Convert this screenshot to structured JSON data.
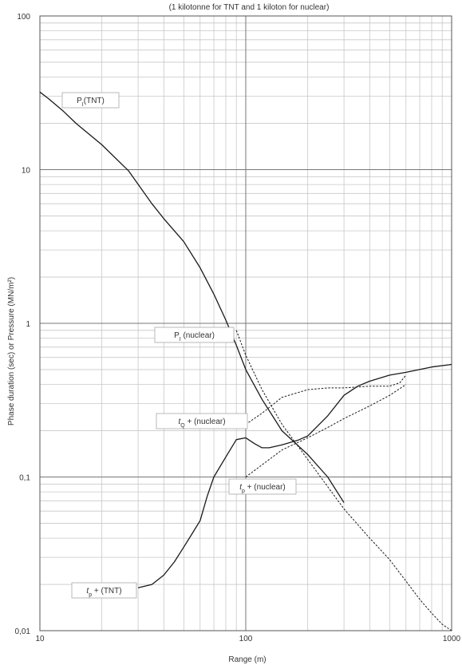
{
  "chart_data": {
    "type": "line",
    "title": "(1 kilotonne for TNT and 1 kiloton for nuclear)",
    "xlabel": "Range (m)",
    "ylabel": "Phase duration (sec) or Pressure (MN/m²)",
    "xscale": "log",
    "yscale": "log",
    "xlim": [
      10,
      1000
    ],
    "ylim": [
      0.01,
      100
    ],
    "grid": true,
    "x_ticks": [
      "10",
      "100",
      "1000"
    ],
    "y_ticks": [
      "0,01",
      "0,1",
      "1",
      "10",
      "100"
    ],
    "colors": {
      "line": "#1a1a1a",
      "grid_major": "#777777",
      "grid_minor": "#c8c8c8",
      "label_border": "#a8a8a8"
    },
    "series": [
      {
        "label_parts": [
          [
            "P",
            ""
          ],
          [
            "I",
            "sub"
          ],
          [
            "(TNT)",
            ""
          ]
        ],
        "style": "solid",
        "x": [
          10,
          11,
          13,
          15,
          20,
          27,
          35,
          40,
          50,
          60,
          70,
          80,
          90,
          100,
          120,
          150,
          200,
          250,
          300
        ],
        "y": [
          32,
          29,
          24,
          20,
          14.5,
          9.8,
          6,
          4.8,
          3.4,
          2.3,
          1.55,
          1.05,
          0.72,
          0.5,
          0.32,
          0.2,
          0.14,
          0.1,
          0.068
        ]
      },
      {
        "label_parts": [
          [
            "P",
            ""
          ],
          [
            "I",
            "sub"
          ],
          [
            " (nuclear)",
            ""
          ]
        ],
        "style": "dashed",
        "x": [
          90,
          100,
          120,
          150,
          200,
          300,
          400,
          500,
          600,
          700,
          800,
          900,
          1000
        ],
        "y": [
          0.9,
          0.62,
          0.37,
          0.22,
          0.13,
          0.062,
          0.04,
          0.029,
          0.021,
          0.016,
          0.013,
          0.011,
          0.01
        ]
      },
      {
        "label_parts": [
          [
            "t",
            "i"
          ],
          [
            "Q",
            "sub"
          ],
          [
            " + (nuclear)",
            ""
          ]
        ],
        "style": "dashed",
        "x": [
          100,
          120,
          150,
          200,
          250,
          300,
          400,
          500,
          560,
          600
        ],
        "y": [
          0.22,
          0.26,
          0.33,
          0.37,
          0.38,
          0.38,
          0.39,
          0.39,
          0.41,
          0.46
        ]
      },
      {
        "label_parts": [
          [
            "t",
            "i"
          ],
          [
            "p",
            "sub"
          ],
          [
            " + (nuclear)",
            ""
          ]
        ],
        "style": "dashed",
        "x": [
          100,
          120,
          150,
          200,
          250,
          300,
          400,
          500,
          600
        ],
        "y": [
          0.1,
          0.12,
          0.15,
          0.18,
          0.21,
          0.24,
          0.29,
          0.34,
          0.4
        ]
      },
      {
        "label_parts": [
          [
            "t",
            "i"
          ],
          [
            "p",
            "sub"
          ],
          [
            " + (TNT)",
            ""
          ]
        ],
        "style": "solid",
        "x": [
          30,
          35,
          40,
          45,
          50,
          55,
          60,
          65,
          70,
          80,
          90,
          100,
          110,
          120,
          130,
          150,
          180,
          200,
          250,
          300,
          350,
          400,
          500,
          600,
          800,
          1000
        ],
        "y": [
          0.019,
          0.02,
          0.023,
          0.028,
          0.035,
          0.043,
          0.052,
          0.075,
          0.1,
          0.135,
          0.175,
          0.18,
          0.165,
          0.155,
          0.155,
          0.162,
          0.174,
          0.185,
          0.25,
          0.34,
          0.39,
          0.42,
          0.46,
          0.48,
          0.52,
          0.54
        ]
      }
    ]
  }
}
